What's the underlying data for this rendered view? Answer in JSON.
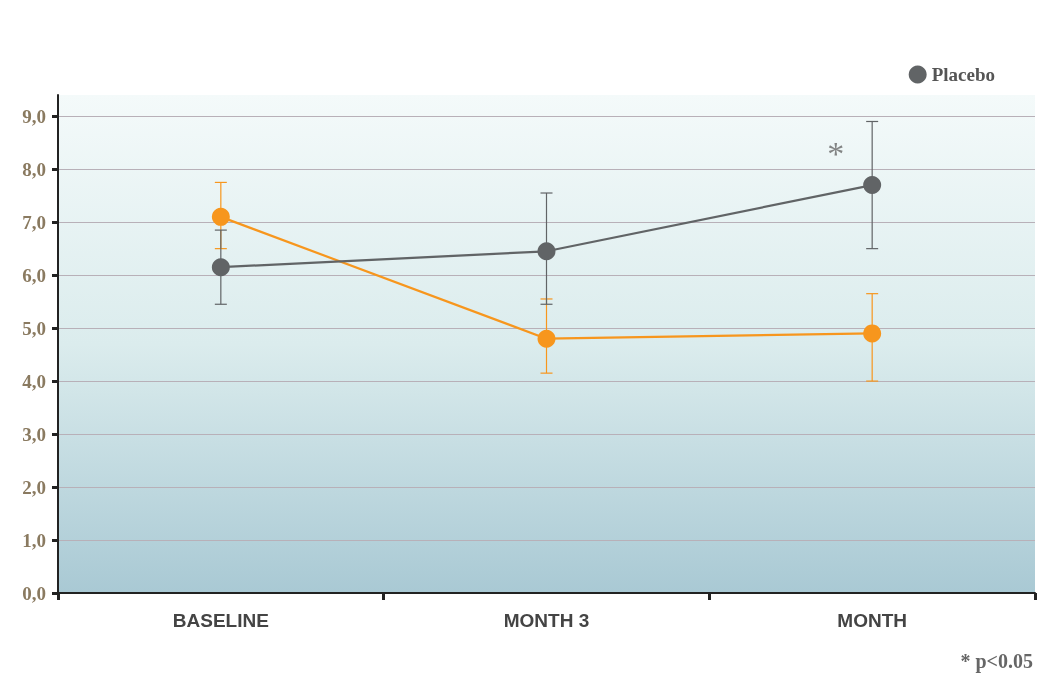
{
  "chart_data": {
    "type": "line",
    "categories": [
      "BASELINE",
      "MONTH 3",
      "MONTH"
    ],
    "series": [
      {
        "color": "#f7961d",
        "values": [
          7.1,
          4.8,
          4.9
        ],
        "errors": [
          [
            6.5,
            7.75
          ],
          [
            4.15,
            5.55
          ],
          [
            4.0,
            5.65
          ]
        ]
      },
      {
        "name": "Placebo",
        "color": "#616466",
        "values": [
          6.15,
          6.45,
          7.7
        ],
        "errors": [
          [
            5.45,
            6.85
          ],
          [
            5.45,
            7.55
          ],
          [
            6.5,
            8.9
          ]
        ]
      }
    ],
    "ylim": [
      0,
      9.4
    ],
    "yticks": [
      {
        "value": 0,
        "label": "0,0"
      },
      {
        "value": 1,
        "label": "1,0"
      },
      {
        "value": 2,
        "label": "2,0"
      },
      {
        "value": 3,
        "label": "3,0"
      },
      {
        "value": 4,
        "label": "4,0"
      },
      {
        "value": 5,
        "label": "5,0"
      },
      {
        "value": 6,
        "label": "6,0"
      },
      {
        "value": 7,
        "label": "7,0"
      },
      {
        "value": 8,
        "label": "8,0"
      },
      {
        "value": 9,
        "label": "9,0"
      }
    ],
    "grid": "y",
    "legend": "top right",
    "marker": "circle",
    "line_style": "solid",
    "annotations": [
      {
        "text": "*",
        "x": "MONTH",
        "y": 8.3
      },
      "* p<0.05"
    ]
  }
}
